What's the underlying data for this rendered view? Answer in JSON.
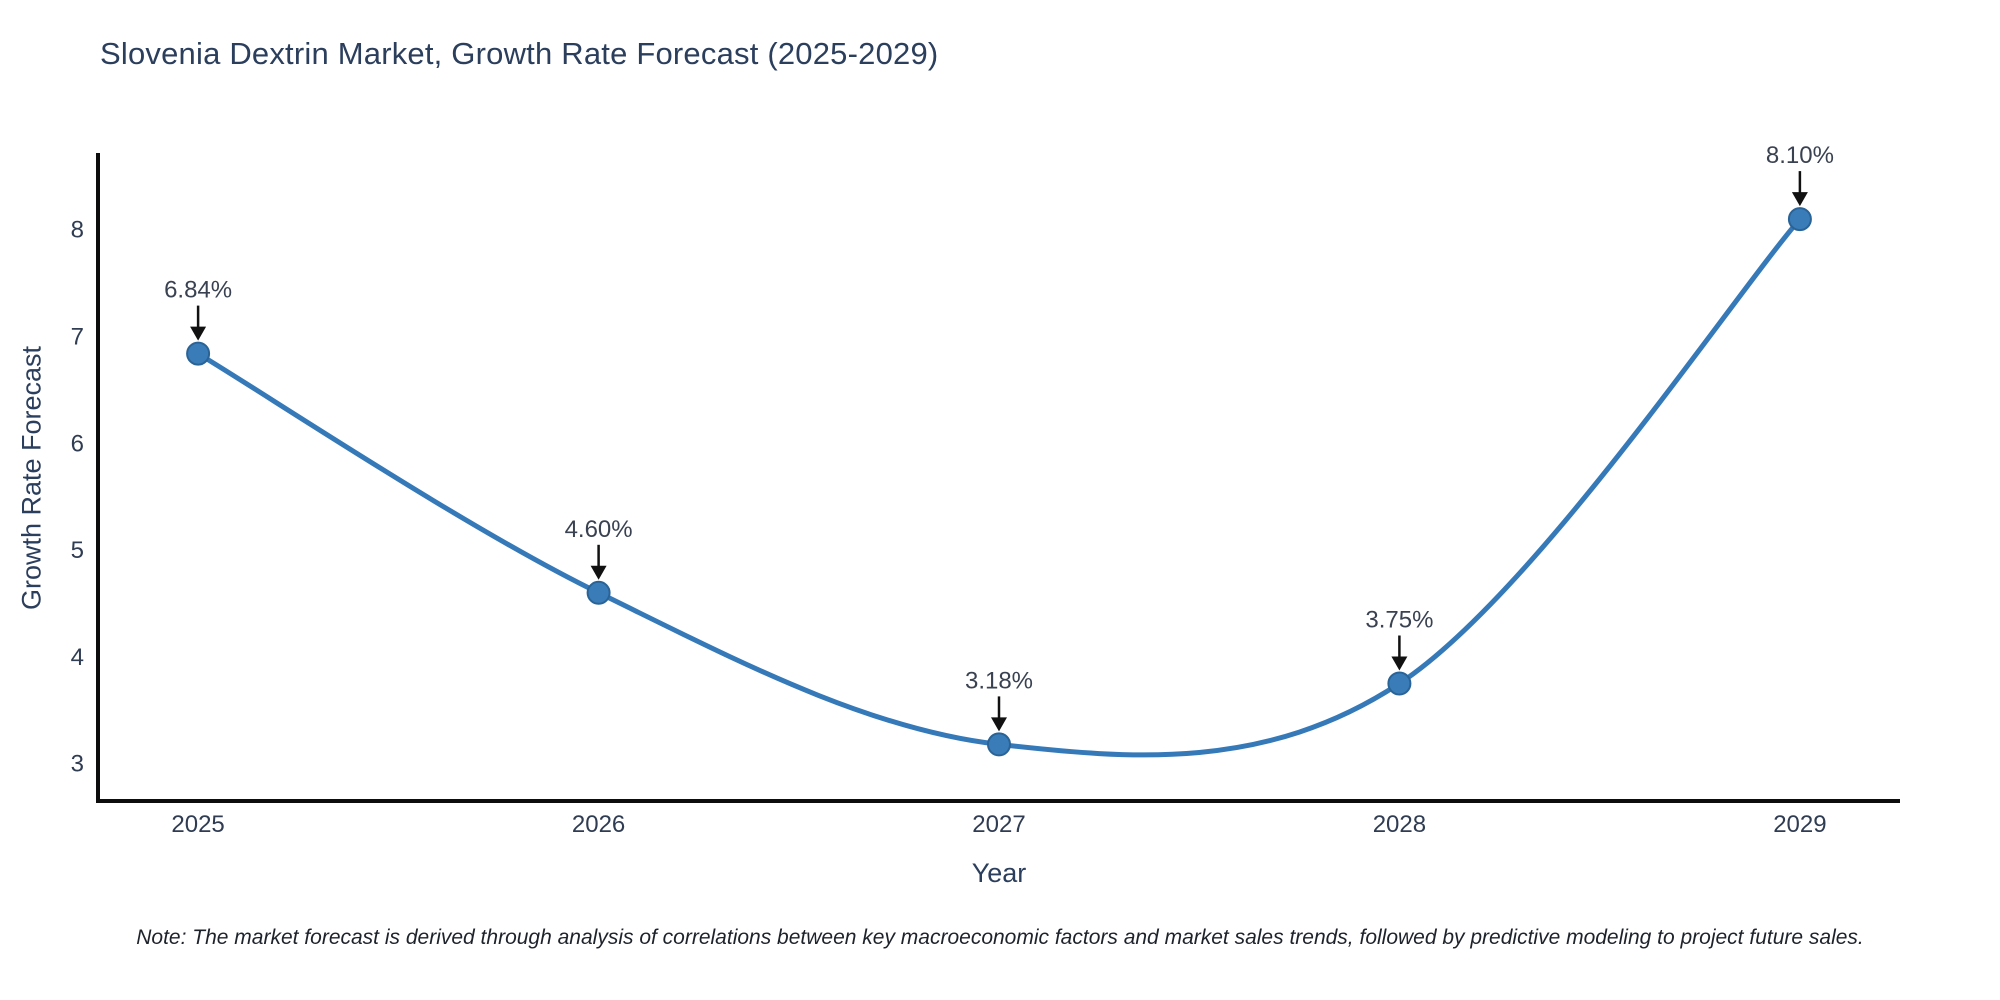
{
  "title": "Slovenia Dextrin Market, Growth Rate Forecast (2025-2029)",
  "footnote": "Note: The market forecast is derived through analysis of correlations between key macroeconomic factors and market sales trends, followed by predictive modeling to project future sales.",
  "colors": {
    "title_text": "#2b3e5c",
    "axis_text": "#2f3c52",
    "annotation_text": "#3a4252",
    "line": "#3579b8",
    "marker_fill": "#3a7cb8",
    "marker_edge": "#2a6396",
    "arrow": "#111111",
    "spine": "#0d0d0d",
    "background": "#ffffff"
  },
  "chart_data": {
    "type": "line",
    "line_shape": "spline",
    "markers": true,
    "title": "Slovenia Dextrin Market, Growth Rate Forecast (2025-2029)",
    "xlabel": "Year",
    "ylabel": "Growth Rate Forecast",
    "x": [
      2025,
      2026,
      2027,
      2028,
      2029
    ],
    "values": [
      6.84,
      4.6,
      3.18,
      3.75,
      8.1
    ],
    "point_labels": [
      "6.84%",
      "4.60%",
      "3.18%",
      "3.75%",
      "8.10%"
    ],
    "xticks": [
      "2025",
      "2026",
      "2027",
      "2028",
      "2029"
    ],
    "yticks": [
      3,
      4,
      5,
      6,
      7,
      8
    ],
    "xlim": [
      2024.75,
      2029.25
    ],
    "ylim": [
      2.65,
      8.7
    ],
    "grid": false,
    "legend": "none",
    "annotation_style": "value above point with downward black arrow"
  }
}
